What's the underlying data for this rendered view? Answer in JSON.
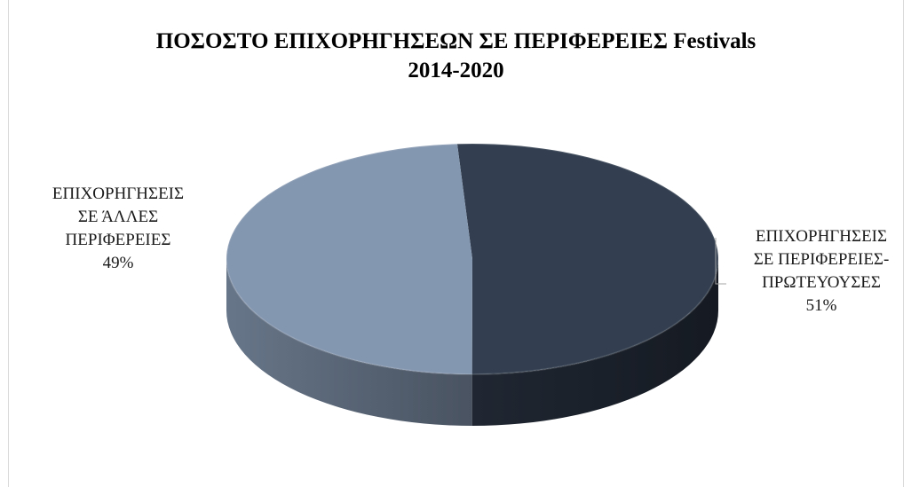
{
  "chart_data": {
    "type": "pie",
    "title_lines": [
      "ΠΟΣΟΣΤΟ ΕΠΙΧΟΡΗΓΗΣΕΩΝ ΣΕ ΠΕΡΙΦΕΡΕΙΕΣ Festivals",
      "2014-2020"
    ],
    "slices": [
      {
        "label_lines": [
          "ΕΠΙΧΟΡΗΓΗΣΕΙΣ",
          "ΣΕ ΠΕΡΙΦΕΡΕΙΕΣ-",
          "ΠΡΩΤΕΥΟΥΣΕΣ"
        ],
        "percent_label": "51%",
        "value": 51,
        "color": "#333f50"
      },
      {
        "label_lines": [
          "ΕΠΙΧΟΡΗΓΗΣΕΙΣ",
          "ΣΕ ΆΛΛΕΣ",
          "ΠΕΡΙΦΕΡΕΙΕΣ"
        ],
        "percent_label": "49%",
        "value": 49,
        "color": "#8497b0"
      }
    ],
    "style": "3d-pie",
    "legend": "none"
  }
}
